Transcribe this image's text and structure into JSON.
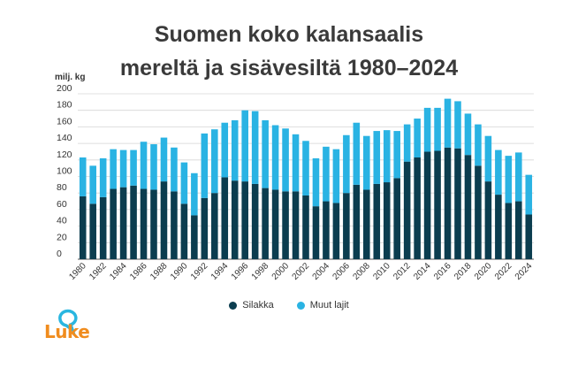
{
  "title_line1": "Suomen koko kalansaalis",
  "title_line2": "mereltä ja sisävesiltä 1980–2024",
  "logo": {
    "text": "Luke",
    "color": "#f08c1e",
    "bubble_color": "#29b6e0"
  },
  "chart_data": {
    "type": "bar",
    "stacked": true,
    "ylabel": "milj. kg",
    "ylim": [
      0,
      200
    ],
    "yticks": [
      0,
      20,
      40,
      60,
      80,
      100,
      120,
      140,
      160,
      180,
      200
    ],
    "grid": true,
    "legend_position": "bottom",
    "categories": [
      "1980",
      "1981",
      "1982",
      "1983",
      "1984",
      "1985",
      "1986",
      "1987",
      "1988",
      "1989",
      "1990",
      "1991",
      "1992",
      "1993",
      "1994",
      "1995",
      "1996",
      "1997",
      "1998",
      "1999",
      "2000",
      "2001",
      "2002",
      "2003",
      "2004",
      "2005",
      "2006",
      "2007",
      "2008",
      "2009",
      "2010",
      "2011",
      "2012",
      "2013",
      "2014",
      "2015",
      "2016",
      "2017",
      "2018",
      "2019",
      "2020",
      "2021",
      "2022",
      "2023",
      "2024"
    ],
    "xtick_labels": [
      "1980",
      "1982",
      "1984",
      "1986",
      "1988",
      "1990",
      "1992",
      "1994",
      "1996",
      "1998",
      "2000",
      "2002",
      "2004",
      "2006",
      "2008",
      "2010",
      "2012",
      "2014",
      "2016",
      "2018",
      "2020",
      "2022",
      "2024"
    ],
    "series": [
      {
        "name": "Silakka",
        "color": "#0b3d4f",
        "values": [
          76,
          67,
          75,
          85,
          87,
          89,
          85,
          84,
          94,
          82,
          67,
          53,
          74,
          80,
          99,
          95,
          94,
          91,
          86,
          84,
          82,
          82,
          77,
          64,
          70,
          68,
          80,
          90,
          84,
          91,
          93,
          98,
          118,
          123,
          130,
          131,
          135,
          134,
          126,
          113,
          94,
          78,
          68,
          70,
          54
        ]
      },
      {
        "name": "Muut lajit",
        "color": "#2ab3e3",
        "values": [
          47,
          46,
          47,
          48,
          45,
          43,
          57,
          55,
          53,
          53,
          50,
          51,
          78,
          77,
          66,
          73,
          86,
          88,
          82,
          78,
          76,
          69,
          66,
          58,
          66,
          65,
          70,
          75,
          65,
          64,
          63,
          57,
          45,
          47,
          53,
          52,
          59,
          57,
          50,
          50,
          55,
          54,
          57,
          59,
          48
        ]
      }
    ]
  }
}
